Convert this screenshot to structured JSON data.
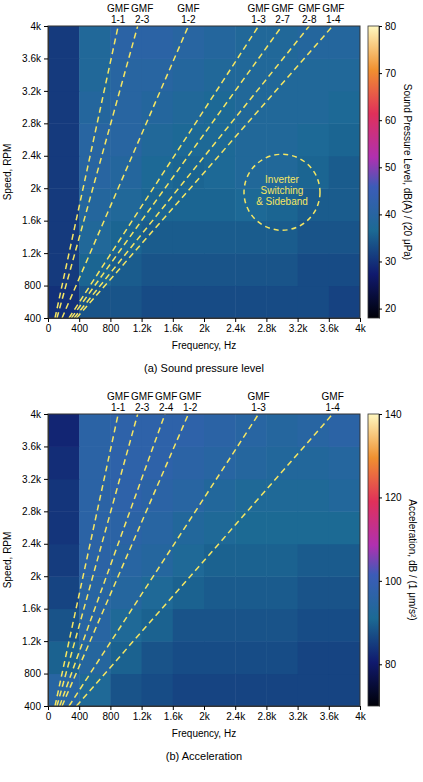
{
  "chart_data": [
    {
      "type": "heatmap",
      "title": "(a) Sound pressure level",
      "x_label": "Frequency, Hz",
      "y_label": "Speed, RPM",
      "xlim": [
        0,
        4000
      ],
      "ylim": [
        400,
        4000
      ],
      "xticks": [
        0,
        400,
        800,
        {
          "value": 1200,
          "label": "1.2k"
        },
        {
          "value": 1600,
          "label": "1.6k"
        },
        {
          "value": 2000,
          "label": "2k"
        },
        {
          "value": 2400,
          "label": "2.4k"
        },
        {
          "value": 2800,
          "label": "2.8k"
        },
        {
          "value": 3200,
          "label": "3.2k"
        },
        {
          "value": 3600,
          "label": "3.6k"
        },
        {
          "value": 4000,
          "label": "4k"
        }
      ],
      "yticks": [
        400,
        800,
        {
          "value": 1200,
          "label": "1.2k"
        },
        {
          "value": 1600,
          "label": "1.6k"
        },
        {
          "value": 2000,
          "label": "2k"
        },
        {
          "value": 2400,
          "label": "2.4k"
        },
        {
          "value": 2800,
          "label": "2.8k"
        },
        {
          "value": 3200,
          "label": "3.2k"
        },
        {
          "value": 3600,
          "label": "3.6k"
        },
        {
          "value": 4000,
          "label": "4k"
        }
      ],
      "x_bins": [
        0,
        400,
        800,
        1200,
        1600,
        2000,
        2400,
        2800,
        3200,
        3600,
        4000
      ],
      "y_bins": [
        400,
        800,
        1200,
        1600,
        2000,
        2400,
        2800,
        3200,
        3600,
        4000
      ],
      "cells": [
        [
          30,
          34,
          34,
          33,
          33,
          33,
          33,
          33,
          33,
          32
        ],
        [
          31,
          36,
          35,
          34,
          34,
          34,
          34,
          34,
          33,
          33
        ],
        [
          31,
          38,
          36,
          35,
          35,
          35,
          35,
          35,
          34,
          34
        ],
        [
          31,
          39,
          38,
          36,
          36,
          36,
          37,
          36,
          35,
          35
        ],
        [
          31,
          40,
          39,
          37,
          36,
          37,
          38,
          38,
          36,
          35
        ],
        [
          31,
          40,
          40,
          38,
          37,
          37,
          38,
          38,
          37,
          36
        ],
        [
          31,
          39,
          40,
          39,
          38,
          37,
          38,
          38,
          38,
          37
        ],
        [
          31,
          38,
          40,
          40,
          39,
          38,
          38,
          38,
          38,
          38
        ],
        [
          31,
          38,
          41,
          41,
          40,
          39,
          38,
          38,
          39,
          39
        ]
      ],
      "colorbar": {
        "label": "Sound Pressure Level, dB(A) / (20 μPa)",
        "range": [
          18,
          80
        ],
        "ticks": [
          20,
          30,
          40,
          50,
          60,
          70,
          80
        ]
      },
      "series": [
        {
          "name": "GMF 1-1",
          "color": "#f5e663",
          "line_style": "dashed",
          "x": [
            90,
            900
          ],
          "y": [
            400,
            4000
          ]
        },
        {
          "name": "GMF 2-3",
          "color": "#f5e663",
          "line_style": "dashed",
          "x": [
            115,
            1150
          ],
          "y": [
            400,
            4000
          ]
        },
        {
          "name": "GMF 1-2",
          "color": "#f5e663",
          "line_style": "dashed",
          "x": [
            180,
            1800
          ],
          "y": [
            400,
            4000
          ]
        },
        {
          "name": "GMF 1-3",
          "color": "#f5e663",
          "line_style": "dashed",
          "x": [
            270,
            2700
          ],
          "y": [
            400,
            4000
          ]
        },
        {
          "name": "GMF 2-7",
          "color": "#f5e663",
          "line_style": "dashed",
          "x": [
            300,
            3000
          ],
          "y": [
            400,
            4000
          ]
        },
        {
          "name": "GMF 2-8",
          "color": "#f5e663",
          "line_style": "dashed",
          "x": [
            335,
            3350
          ],
          "y": [
            400,
            4000
          ]
        },
        {
          "name": "GMF 1-4",
          "color": "#f5e663",
          "line_style": "dashed",
          "x": [
            365,
            3650
          ],
          "y": [
            400,
            4000
          ]
        }
      ],
      "annotations": [
        {
          "text": "Inverter Switching & Sideband",
          "x": 3000,
          "y": 1950
        }
      ]
    },
    {
      "type": "heatmap",
      "title": "(b) Acceleration",
      "x_label": "Frequency, Hz",
      "y_label": "Speed, RPM",
      "xlim": [
        0,
        4000
      ],
      "ylim": [
        400,
        4000
      ],
      "xticks": [
        0,
        400,
        800,
        {
          "value": 1200,
          "label": "1.2k"
        },
        {
          "value": 1600,
          "label": "1.6k"
        },
        {
          "value": 2000,
          "label": "2k"
        },
        {
          "value": 2400,
          "label": "2.4k"
        },
        {
          "value": 2800,
          "label": "2.8k"
        },
        {
          "value": 3200,
          "label": "3.2k"
        },
        {
          "value": 3600,
          "label": "3.6k"
        },
        {
          "value": 4000,
          "label": "4k"
        }
      ],
      "yticks": [
        400,
        800,
        {
          "value": 1200,
          "label": "1.2k"
        },
        {
          "value": 1600,
          "label": "1.6k"
        },
        {
          "value": 2000,
          "label": "2k"
        },
        {
          "value": 2400,
          "label": "2.4k"
        },
        {
          "value": 2800,
          "label": "2.8k"
        },
        {
          "value": 3200,
          "label": "3.2k"
        },
        {
          "value": 3600,
          "label": "3.6k"
        },
        {
          "value": 4000,
          "label": "4k"
        }
      ],
      "x_bins": [
        0,
        400,
        800,
        1200,
        1600,
        2000,
        2400,
        2800,
        3200,
        3600,
        4000
      ],
      "y_bins": [
        400,
        800,
        1200,
        1600,
        2000,
        2400,
        2800,
        3200,
        3600,
        4000
      ],
      "cells": [
        [
          95,
          92,
          88,
          87,
          86,
          86,
          86,
          86,
          86,
          86
        ],
        [
          90,
          94,
          90,
          88,
          87,
          87,
          87,
          87,
          86,
          86
        ],
        [
          88,
          95,
          92,
          90,
          88,
          88,
          88,
          88,
          87,
          87
        ],
        [
          86,
          95,
          94,
          92,
          90,
          89,
          89,
          89,
          88,
          88
        ],
        [
          85,
          96,
          95,
          94,
          92,
          90,
          90,
          90,
          89,
          89
        ],
        [
          84,
          96,
          96,
          95,
          93,
          92,
          91,
          91,
          91,
          91
        ],
        [
          84,
          96,
          97,
          96,
          95,
          93,
          92,
          92,
          92,
          93
        ],
        [
          83,
          96,
          97,
          97,
          96,
          95,
          94,
          93,
          93,
          94
        ],
        [
          82,
          96,
          97,
          97,
          97,
          96,
          95,
          94,
          95,
          96
        ]
      ],
      "colorbar": {
        "label": "Acceleration, dB / (1 μm/s²)",
        "range": [
          70,
          140
        ],
        "ticks": [
          80,
          100,
          120,
          140
        ]
      },
      "series": [
        {
          "name": "GMF 1-1",
          "color": "#f5e663",
          "line_style": "dashed",
          "x": [
            90,
            900
          ],
          "y": [
            400,
            4000
          ]
        },
        {
          "name": "GMF 2-3",
          "color": "#f5e663",
          "line_style": "dashed",
          "x": [
            115,
            1150
          ],
          "y": [
            400,
            4000
          ]
        },
        {
          "name": "GMF 2-4",
          "color": "#f5e663",
          "line_style": "dashed",
          "x": [
            150,
            1500
          ],
          "y": [
            400,
            4000
          ]
        },
        {
          "name": "GMF 1-2",
          "color": "#f5e663",
          "line_style": "dashed",
          "x": [
            180,
            1800
          ],
          "y": [
            400,
            4000
          ]
        },
        {
          "name": "GMF 1-3",
          "color": "#f5e663",
          "line_style": "dashed",
          "x": [
            270,
            2700
          ],
          "y": [
            400,
            4000
          ]
        },
        {
          "name": "GMF 1-4",
          "color": "#f5e663",
          "line_style": "dashed",
          "x": [
            365,
            3650
          ],
          "y": [
            400,
            4000
          ]
        }
      ]
    }
  ]
}
